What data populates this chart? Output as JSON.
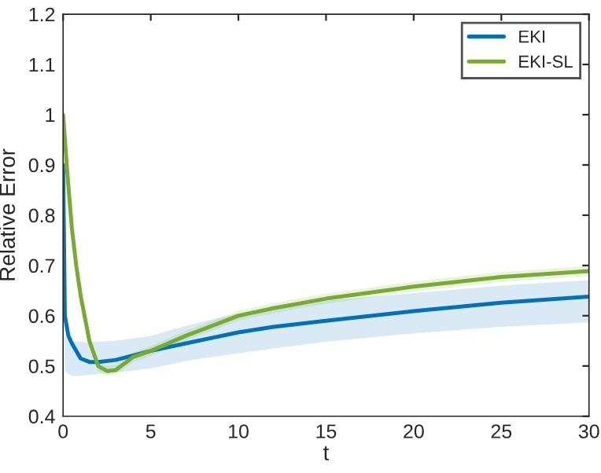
{
  "chart_data": {
    "type": "line",
    "xlabel": "t",
    "ylabel": "Relative Error",
    "xlim": [
      0,
      30
    ],
    "ylim": [
      0.4,
      1.2
    ],
    "xticks": [
      0,
      5,
      10,
      15,
      20,
      25,
      30
    ],
    "yticks": [
      0.4,
      0.5,
      0.6,
      0.7,
      0.8,
      0.9,
      1,
      1.1,
      1.2
    ],
    "grid": false,
    "legend": "top right",
    "marker": "none",
    "line_style": "solid",
    "series": [
      {
        "name": "EKI",
        "color": "#0072bd",
        "x": [
          0,
          0.1,
          0.3,
          0.5,
          1,
          1.5,
          2,
          3,
          5,
          7,
          10,
          12,
          15,
          20,
          25,
          30
        ],
        "values": [
          0.9,
          0.6,
          0.56,
          0.545,
          0.515,
          0.508,
          0.508,
          0.512,
          0.53,
          0.545,
          0.567,
          0.578,
          0.59,
          0.609,
          0.626,
          0.638
        ],
        "lower": [
          0.88,
          0.49,
          0.485,
          0.48,
          0.48,
          0.482,
          0.484,
          0.487,
          0.495,
          0.51,
          0.525,
          0.535,
          0.548,
          0.565,
          0.578,
          0.587
        ],
        "upper": [
          0.92,
          0.56,
          0.552,
          0.55,
          0.548,
          0.547,
          0.548,
          0.55,
          0.56,
          0.58,
          0.605,
          0.615,
          0.63,
          0.645,
          0.66,
          0.671
        ]
      },
      {
        "name": "EKI-SL",
        "color": "#77ac30",
        "x": [
          0,
          0.25,
          0.5,
          0.75,
          1,
          1.5,
          2,
          2.5,
          3,
          4,
          5,
          7,
          10,
          12,
          15,
          20,
          25,
          30
        ],
        "values": [
          1.0,
          0.88,
          0.774,
          0.7,
          0.64,
          0.55,
          0.5,
          0.49,
          0.492,
          0.518,
          0.53,
          0.56,
          0.6,
          0.615,
          0.634,
          0.658,
          0.677,
          0.689
        ],
        "lower": [
          0.99,
          0.87,
          0.764,
          0.69,
          0.63,
          0.54,
          0.49,
          0.48,
          0.482,
          0.508,
          0.52,
          0.55,
          0.59,
          0.605,
          0.624,
          0.648,
          0.667,
          0.679
        ],
        "upper": [
          1.0,
          0.89,
          0.784,
          0.71,
          0.65,
          0.56,
          0.51,
          0.5,
          0.502,
          0.528,
          0.54,
          0.57,
          0.61,
          0.625,
          0.644,
          0.668,
          0.687,
          0.699
        ]
      }
    ]
  }
}
